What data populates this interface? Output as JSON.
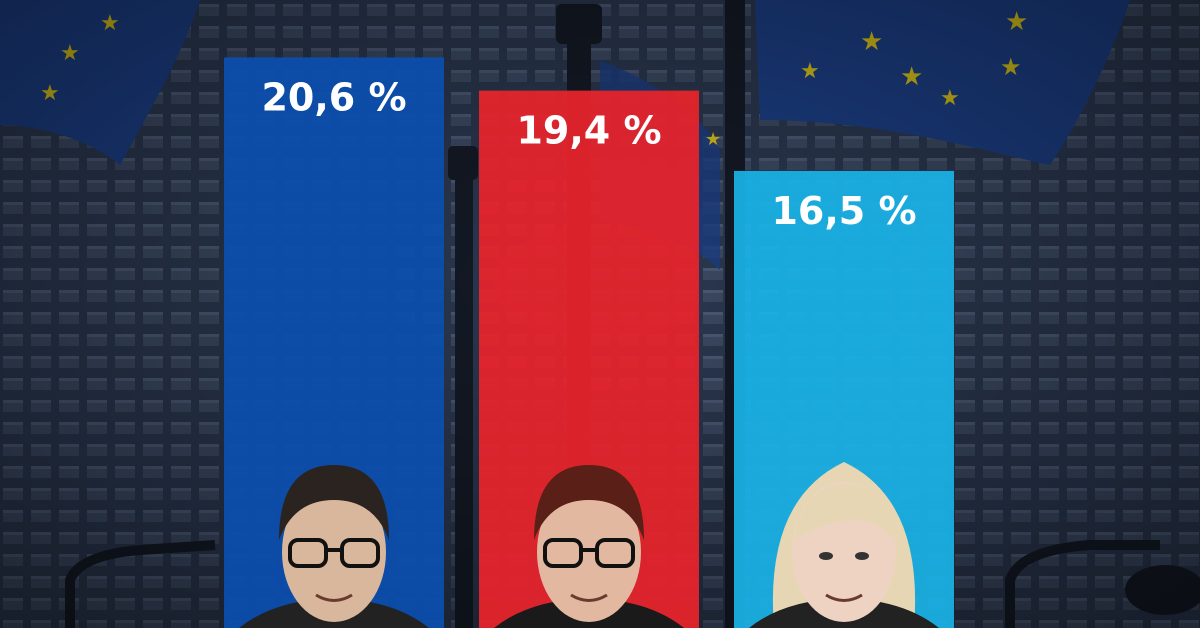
{
  "colors": {
    "background": "#1f2a3e",
    "bar_1": "#0b4fae",
    "bar_2": "#e8232b",
    "bar_3": "#1ab3e6",
    "label": "#ffffff"
  },
  "chart_data": {
    "type": "bar",
    "categories": [
      "",
      "",
      ""
    ],
    "values": [
      20.6,
      19.4,
      16.5
    ],
    "value_labels": [
      "20,6 %",
      "19,4 %",
      "16,5 %"
    ],
    "unit": "%",
    "title": "",
    "xlabel": "",
    "ylabel": "",
    "grid": false,
    "legend": "none",
    "bar_colors": [
      "#0b4fae",
      "#e8232b",
      "#1ab3e6"
    ],
    "portraits": [
      "person-portrait-man-glasses",
      "person-portrait-man-glasses-smiling",
      "person-portrait-woman-blonde"
    ],
    "background_image": "eu-flags-and-building-photo"
  }
}
